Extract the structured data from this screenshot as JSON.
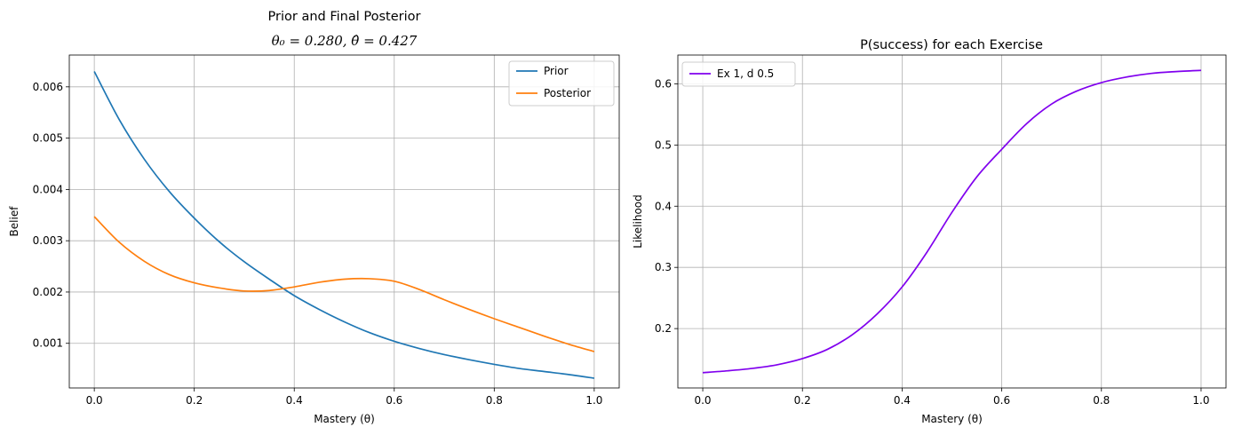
{
  "chart_data": [
    {
      "type": "line",
      "title": "Prior and Final Posterior",
      "subtitle": "θ₀ = 0.280, θ̂ = 0.427",
      "xlabel": "Mastery (θ)",
      "ylabel": "Belief",
      "xlim": [
        -0.05,
        1.05
      ],
      "ylim": [
        0.00013,
        0.00662
      ],
      "xticks": [
        0.0,
        0.2,
        0.4,
        0.6,
        0.8,
        1.0
      ],
      "xtick_labels": [
        "0.0",
        "0.2",
        "0.4",
        "0.6",
        "0.8",
        "1.0"
      ],
      "yticks": [
        0.001,
        0.002,
        0.003,
        0.004,
        0.005,
        0.006
      ],
      "ytick_labels": [
        "0.001",
        "0.002",
        "0.003",
        "0.004",
        "0.005",
        "0.006"
      ],
      "grid": true,
      "legend": "top-right",
      "x": [
        0.0,
        0.05,
        0.1,
        0.15,
        0.2,
        0.25,
        0.3,
        0.35,
        0.4,
        0.45,
        0.5,
        0.55,
        0.6,
        0.65,
        0.7,
        0.75,
        0.8,
        0.85,
        0.9,
        0.95,
        1.0
      ],
      "series": [
        {
          "name": "Prior",
          "color": "#1f77b4",
          "values": [
            0.0063,
            0.00536,
            0.00459,
            0.00396,
            0.00344,
            0.00298,
            0.00259,
            0.00225,
            0.00193,
            0.00166,
            0.00142,
            0.00121,
            0.00104,
            0.0009,
            0.00078,
            0.00068,
            0.00059,
            0.00051,
            0.00045,
            0.00039,
            0.00032
          ]
        },
        {
          "name": "Posterior",
          "color": "#ff7f0e",
          "values": [
            0.00347,
            0.00297,
            0.0026,
            0.00234,
            0.00218,
            0.00208,
            0.00202,
            0.00203,
            0.0021,
            0.00219,
            0.00225,
            0.00226,
            0.00221,
            0.00205,
            0.00185,
            0.00166,
            0.00148,
            0.00131,
            0.00114,
            0.00098,
            0.00084
          ]
        }
      ]
    },
    {
      "type": "line",
      "title": "P(success) for each Exercise",
      "xlabel": "Mastery (θ)",
      "ylabel": "Likelihood",
      "xlim": [
        -0.05,
        1.05
      ],
      "ylim": [
        0.103,
        0.647
      ],
      "xticks": [
        0.0,
        0.2,
        0.4,
        0.6,
        0.8,
        1.0
      ],
      "xtick_labels": [
        "0.0",
        "0.2",
        "0.4",
        "0.6",
        "0.8",
        "1.0"
      ],
      "yticks": [
        0.2,
        0.3,
        0.4,
        0.5,
        0.6
      ],
      "ytick_labels": [
        "0.2",
        "0.3",
        "0.4",
        "0.5",
        "0.6"
      ],
      "grid": true,
      "legend": "top-left",
      "x": [
        0.0,
        0.05,
        0.1,
        0.15,
        0.2,
        0.25,
        0.3,
        0.35,
        0.4,
        0.45,
        0.5,
        0.55,
        0.6,
        0.65,
        0.7,
        0.75,
        0.8,
        0.85,
        0.9,
        0.95,
        1.0
      ],
      "series": [
        {
          "name": "Ex 1, d 0.5",
          "color": "#8000ee",
          "values": [
            0.128,
            0.131,
            0.135,
            0.141,
            0.151,
            0.166,
            0.19,
            0.224,
            0.268,
            0.325,
            0.39,
            0.448,
            0.493,
            0.535,
            0.567,
            0.588,
            0.602,
            0.611,
            0.617,
            0.62,
            0.622
          ]
        }
      ]
    }
  ]
}
